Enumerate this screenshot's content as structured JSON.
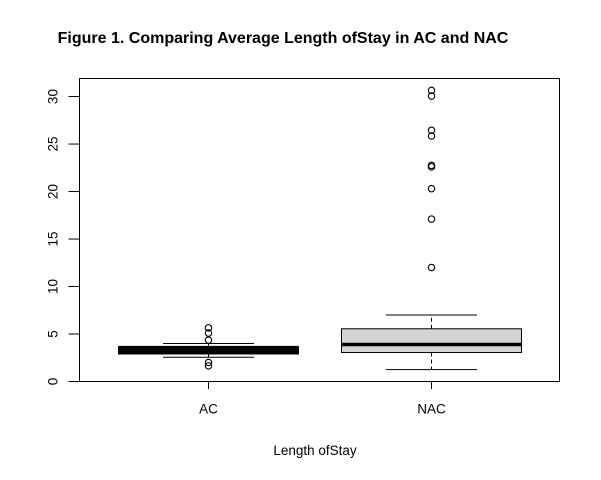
{
  "figure": {
    "title": "Figure 1. Comparing Average Length ofStay in AC and NAC",
    "xlabel": "Length ofStay"
  },
  "chart_data": {
    "type": "boxplot",
    "title": "Figure 1. Comparing Average Length ofStay in AC and NAC",
    "xlabel": "Length ofStay",
    "ylabel": "",
    "categories": [
      "AC",
      "NAC"
    ],
    "y_ticks": [
      0,
      5,
      10,
      15,
      20,
      25,
      30
    ],
    "ylim": [
      0,
      31.9
    ],
    "grid": false,
    "legend": "none",
    "series": [
      {
        "name": "AC",
        "whisker_low": 2.55,
        "q1": 2.9,
        "median": 3.3,
        "q3": 3.65,
        "whisker_high": 4.0,
        "outliers": [
          5.65,
          5.1,
          4.35,
          2.0,
          1.65
        ]
      },
      {
        "name": "NAC",
        "whisker_low": 1.25,
        "q1": 3.05,
        "median": 3.9,
        "q3": 5.55,
        "whisker_high": 7.0,
        "outliers": [
          30.65,
          30.05,
          26.45,
          25.85,
          22.75,
          22.6,
          20.3,
          17.1,
          12.0
        ]
      }
    ],
    "colors": {
      "box_fill": "#d3d3d3",
      "line": "#000000",
      "background": "#ffffff"
    }
  }
}
